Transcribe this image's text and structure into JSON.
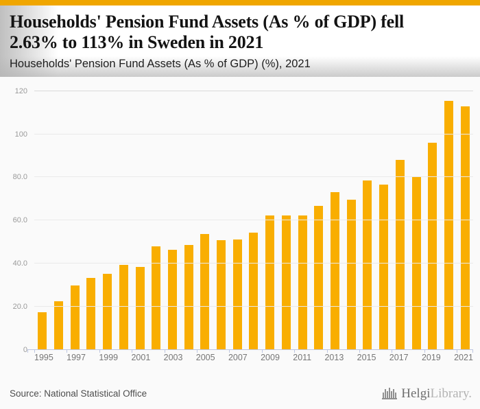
{
  "header": {
    "title_line1": "Households' Pension Fund Assets (As % of GDP) fell",
    "title_line2": "2.63% to 113% in Sweden in 2021",
    "subtitle": "Households' Pension Fund Assets (As % of GDP) (%), 2021"
  },
  "chart_data": {
    "type": "bar",
    "title": "Households' Pension Fund Assets (As % of GDP) (%), 2021",
    "categories": [
      "1995",
      "1996",
      "1997",
      "1998",
      "1999",
      "2000",
      "2001",
      "2002",
      "2003",
      "2004",
      "2005",
      "2006",
      "2007",
      "2008",
      "2009",
      "2010",
      "2011",
      "2012",
      "2013",
      "2014",
      "2015",
      "2016",
      "2017",
      "2018",
      "2019",
      "2020",
      "2021"
    ],
    "values": [
      17.6,
      22.7,
      29.8,
      33.3,
      35.3,
      39.5,
      38.5,
      48.0,
      46.5,
      48.7,
      53.6,
      51.0,
      51.2,
      54.4,
      62.2,
      62.2,
      62.2,
      66.8,
      73.1,
      69.8,
      78.6,
      76.6,
      88.0,
      80.5,
      96.0,
      115.6,
      113.0
    ],
    "x_tick_labels": [
      "1995",
      "1997",
      "1999",
      "2001",
      "2003",
      "2005",
      "2007",
      "2009",
      "2011",
      "2013",
      "2015",
      "2017",
      "2019",
      "2021"
    ],
    "y_ticks": [
      {
        "value": 0,
        "label": "0"
      },
      {
        "value": 20,
        "label": "20.0"
      },
      {
        "value": 40,
        "label": "40.0"
      },
      {
        "value": 60,
        "label": "60.0"
      },
      {
        "value": 80,
        "label": "80.0"
      },
      {
        "value": 100,
        "label": "100"
      },
      {
        "value": 120,
        "label": "120"
      }
    ],
    "ylim": [
      0,
      125
    ],
    "grid": "horizontal",
    "legend": "none",
    "bar_color": "#f9ae01",
    "xlabel": "",
    "ylabel": ""
  },
  "footer": {
    "source": "Source: National Statistical Office",
    "logo": {
      "icon": "bar-chart-skyline-icon",
      "text_primary": "Helgi",
      "text_secondary": "Library."
    }
  },
  "colors": {
    "top_strip": "#f0a600",
    "bar": "#f9ae01",
    "page_bg": "#fafafa",
    "header_bg": "#ffffff",
    "gridline": "#eaeaea",
    "gridline_top": "#d9d9d9",
    "axis": "#bdc6e2"
  }
}
